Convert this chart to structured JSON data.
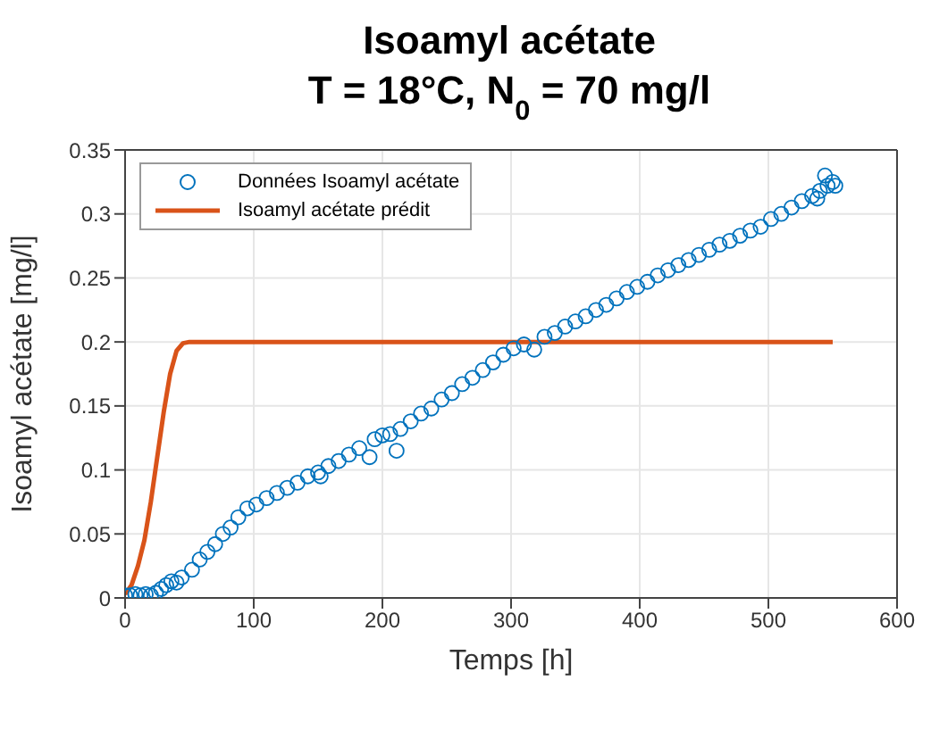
{
  "chart_data": {
    "type": "scatter",
    "title": "Isoamyl acétate",
    "subtitle": "T = 18°C, N$_{0}$ = 70 mg/l",
    "xlabel": "Temps  [h]",
    "ylabel": "Isoamyl acétate [mg/l]",
    "xlim": [
      0,
      600
    ],
    "xticks": [
      0,
      100,
      200,
      300,
      400,
      500,
      600
    ],
    "ylim": [
      0,
      0.35
    ],
    "yticks": [
      0,
      0.05,
      0.1,
      0.15,
      0.2,
      0.25,
      0.3,
      0.35
    ],
    "grid": true,
    "legend": "top left",
    "series": [
      {
        "name": "Données Isoamyl acétate",
        "type": "scatter",
        "marker": "circle",
        "color": "#0072bd",
        "x": [
          0,
          4,
          8,
          12,
          16,
          20,
          24,
          28,
          32,
          36,
          40,
          44,
          52,
          58,
          64,
          70,
          76,
          82,
          88,
          95,
          102,
          110,
          118,
          126,
          134,
          142,
          150,
          152,
          158,
          166,
          174,
          182,
          190,
          194,
          200,
          206,
          211,
          214,
          222,
          230,
          238,
          246,
          254,
          262,
          270,
          278,
          286,
          294,
          302,
          310,
          318,
          326,
          334,
          342,
          350,
          358,
          366,
          374,
          382,
          390,
          398,
          406,
          414,
          422,
          430,
          438,
          446,
          454,
          462,
          470,
          478,
          486,
          494,
          502,
          510,
          518,
          526,
          534,
          538,
          540,
          544,
          546,
          550,
          552
        ],
        "values": [
          0.002,
          0.002,
          0.003,
          0.002,
          0.003,
          0.002,
          0.004,
          0.007,
          0.01,
          0.013,
          0.012,
          0.016,
          0.022,
          0.03,
          0.036,
          0.042,
          0.05,
          0.055,
          0.063,
          0.07,
          0.073,
          0.078,
          0.082,
          0.086,
          0.09,
          0.095,
          0.098,
          0.095,
          0.103,
          0.107,
          0.112,
          0.117,
          0.11,
          0.124,
          0.127,
          0.128,
          0.115,
          0.132,
          0.138,
          0.144,
          0.148,
          0.155,
          0.16,
          0.167,
          0.172,
          0.178,
          0.184,
          0.19,
          0.195,
          0.198,
          0.194,
          0.204,
          0.207,
          0.212,
          0.216,
          0.22,
          0.225,
          0.229,
          0.234,
          0.239,
          0.243,
          0.247,
          0.252,
          0.256,
          0.26,
          0.264,
          0.268,
          0.272,
          0.276,
          0.279,
          0.283,
          0.287,
          0.29,
          0.296,
          0.3,
          0.305,
          0.31,
          0.314,
          0.312,
          0.318,
          0.33,
          0.322,
          0.325,
          0.322
        ]
      },
      {
        "name": "Isoamyl acétate prédit",
        "type": "line",
        "marker": "none",
        "line_style": "solid",
        "color": "#d95319",
        "x": [
          0,
          5,
          10,
          15,
          20,
          25,
          30,
          35,
          40,
          45,
          50,
          550
        ],
        "values": [
          0.003,
          0.01,
          0.025,
          0.045,
          0.075,
          0.11,
          0.145,
          0.175,
          0.193,
          0.199,
          0.2,
          0.2
        ]
      }
    ]
  }
}
